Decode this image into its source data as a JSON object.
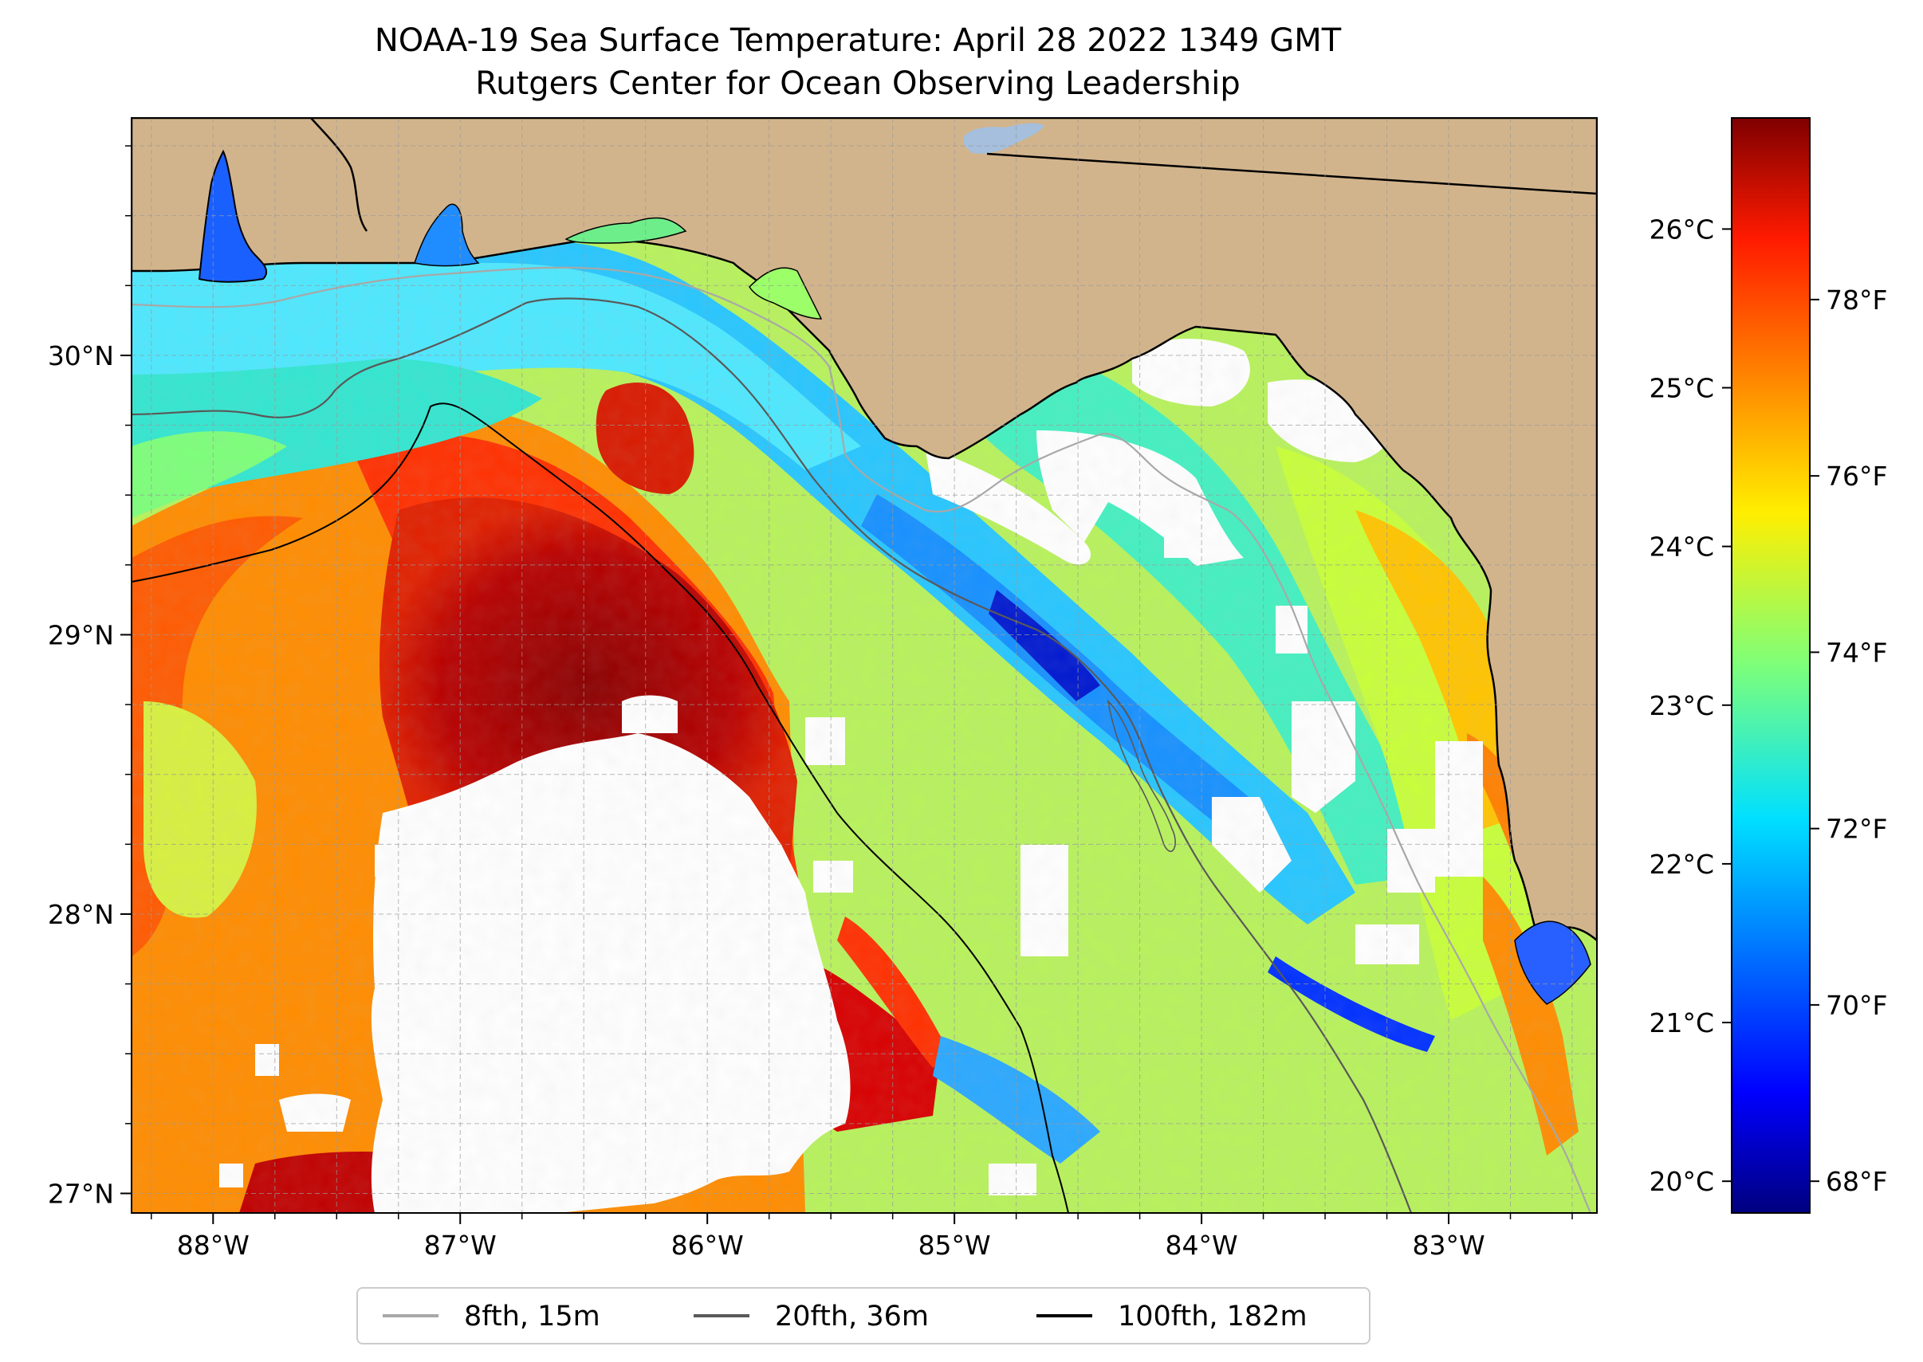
{
  "map": {
    "title_line1": "NOAA-19 Sea Surface Temperature: April 28 2022 1349 GMT",
    "title_line2": "Rutgers Center for Ocean Observing Leadership",
    "extent": {
      "lon_min": -88.33,
      "lon_max": -82.4,
      "lat_min": 26.93,
      "lat_max": 30.85
    },
    "lon_ticks": [
      {
        "value": -88,
        "label": "88°W"
      },
      {
        "value": -87,
        "label": "87°W"
      },
      {
        "value": -86,
        "label": "86°W"
      },
      {
        "value": -85,
        "label": "85°W"
      },
      {
        "value": -84,
        "label": "84°W"
      },
      {
        "value": -83,
        "label": "83°W"
      }
    ],
    "lat_ticks": [
      {
        "value": 27,
        "label": "27°N"
      },
      {
        "value": 28,
        "label": "28°N"
      },
      {
        "value": 29,
        "label": "29°N"
      },
      {
        "value": 30,
        "label": "30°N"
      }
    ],
    "colors": {
      "land": "#d2b48c",
      "no_data": "#ffffff",
      "coastline": "#000000",
      "lake": "#a5bfdd",
      "grid": "#9a9a9a"
    }
  },
  "colorbar": {
    "colormap": "jet",
    "range_c": [
      19.8,
      26.7
    ],
    "celsius_ticks": [
      {
        "value": 20,
        "label": "20°C"
      },
      {
        "value": 21,
        "label": "21°C"
      },
      {
        "value": 22,
        "label": "22°C"
      },
      {
        "value": 23,
        "label": "23°C"
      },
      {
        "value": 24,
        "label": "24°C"
      },
      {
        "value": 25,
        "label": "25°C"
      },
      {
        "value": 26,
        "label": "26°C"
      }
    ],
    "fahrenheit_ticks": [
      {
        "value": 68,
        "label": "68°F"
      },
      {
        "value": 70,
        "label": "70°F"
      },
      {
        "value": 72,
        "label": "72°F"
      },
      {
        "value": 74,
        "label": "74°F"
      },
      {
        "value": 76,
        "label": "76°F"
      },
      {
        "value": 78,
        "label": "78°F"
      }
    ]
  },
  "legend": {
    "entries": [
      {
        "label": "8fth, 15m",
        "color": "#a8a8a8"
      },
      {
        "label": "20fth, 36m",
        "color": "#595959"
      },
      {
        "label": "100fth, 182m",
        "color": "#000000"
      }
    ]
  }
}
